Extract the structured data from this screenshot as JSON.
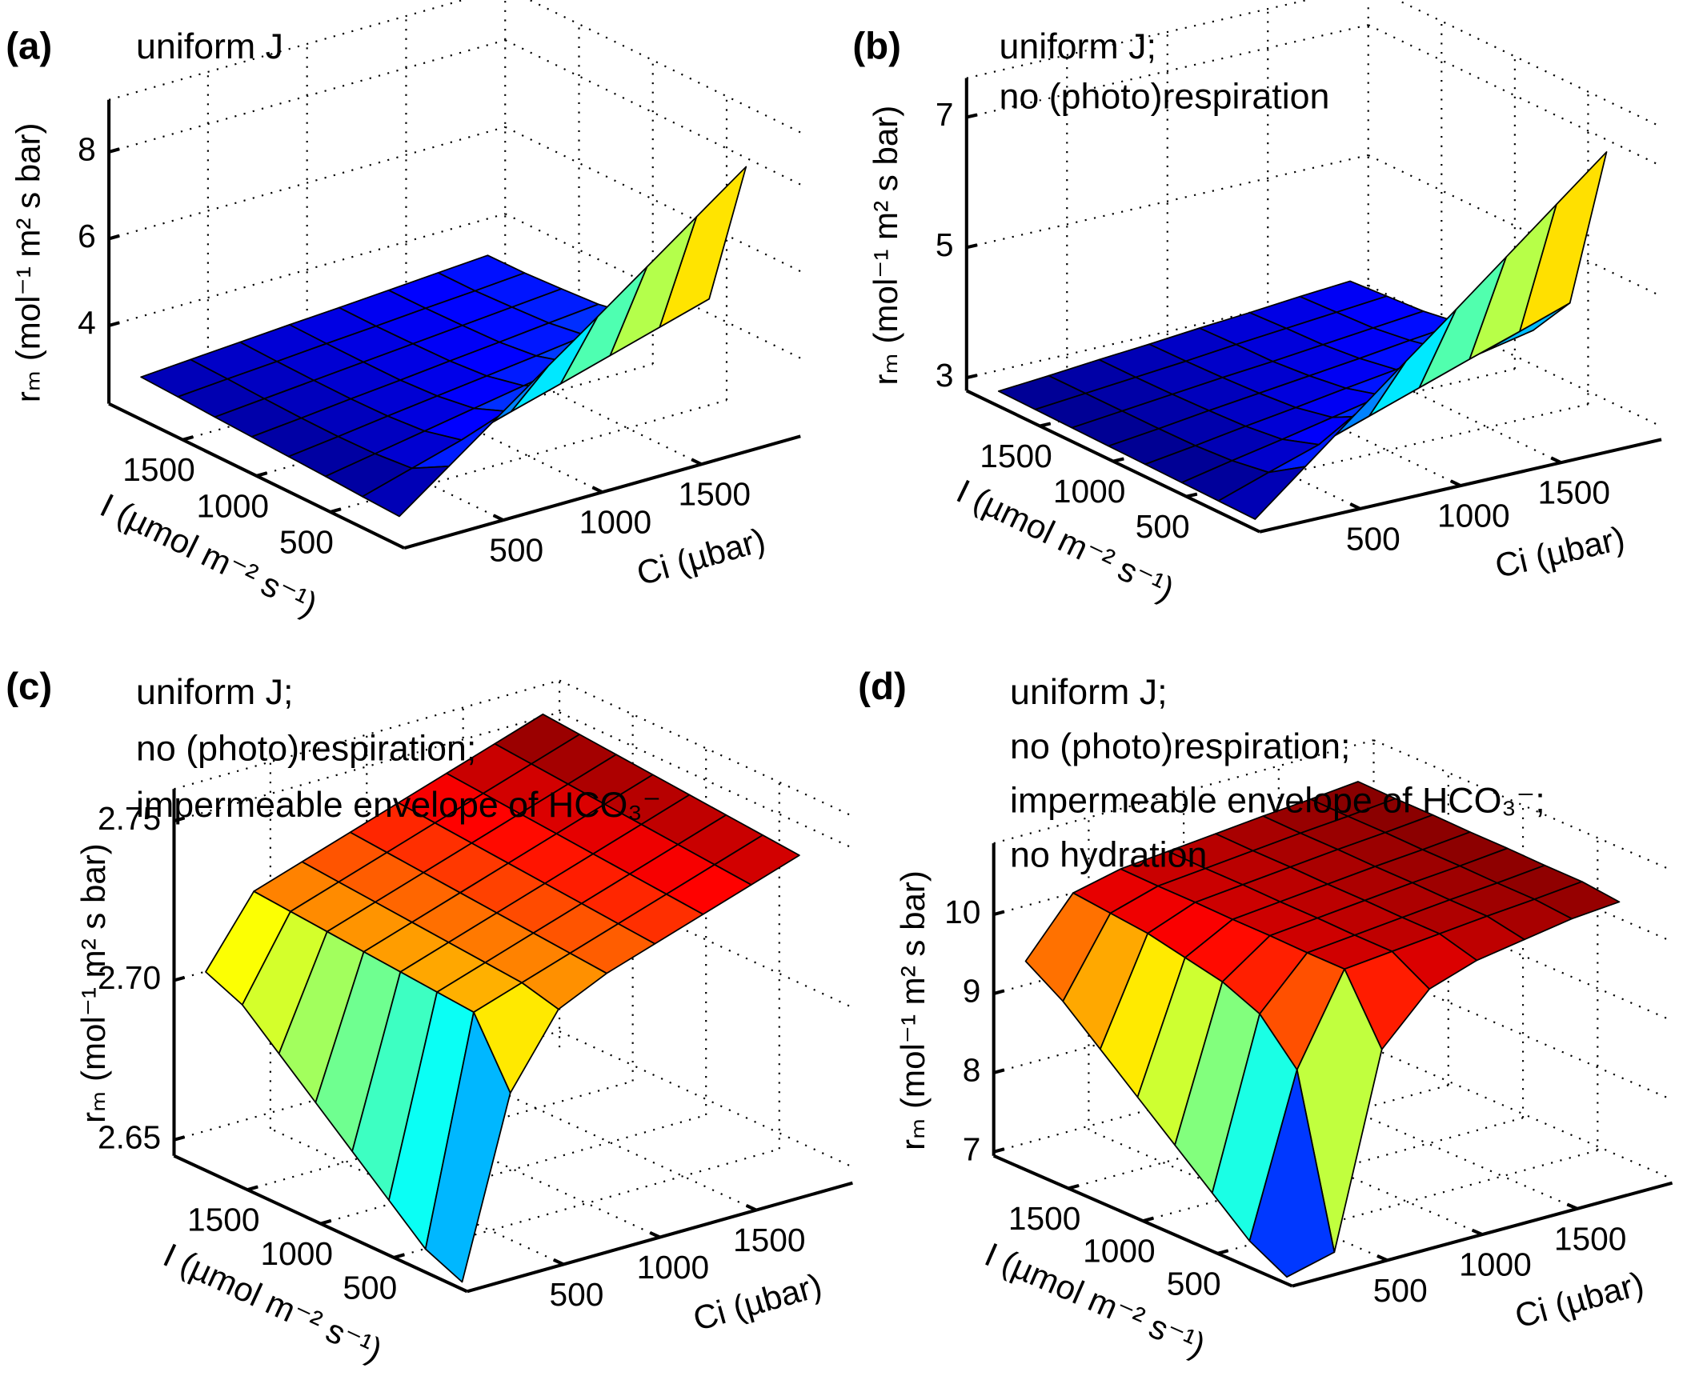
{
  "chart_data": [
    {
      "type": "surface",
      "panel_label": "(a)",
      "annotation": [
        "uniform J"
      ],
      "x_label": "Ci (µbar)",
      "y_label": "I (µmol m⁻² s⁻¹)",
      "z_label": "rₘ (mol⁻¹ m² s bar)",
      "colormap": "jet",
      "grid": true,
      "xlim": [
        0,
        2000
      ],
      "ylim": [
        0,
        2000
      ],
      "zlim": [
        2.2,
        9.2
      ],
      "xticks": [
        500,
        1000,
        1500
      ],
      "yticks": [
        500,
        1000,
        1500
      ],
      "zticks": [
        4,
        6,
        8
      ],
      "x": [
        50,
        300,
        550,
        800,
        1050,
        1300,
        1550,
        1800
      ],
      "y": [
        100,
        350,
        600,
        850,
        1100,
        1350,
        1600,
        1850
      ],
      "z": [
        [
          2.7,
          3.53,
          4.36,
          5.19,
          6.01,
          6.84,
          7.67,
          8.5
        ],
        [
          2.74,
          3.07,
          3.4,
          3.73,
          4.05,
          4.38,
          4.71,
          5.04
        ],
        [
          2.79,
          2.99,
          3.19,
          3.39,
          3.59,
          3.79,
          3.99,
          4.19
        ],
        [
          2.83,
          2.97,
          3.12,
          3.26,
          3.4,
          3.54,
          3.69,
          3.83
        ],
        [
          2.87,
          2.98,
          3.1,
          3.21,
          3.33,
          3.44,
          3.56,
          3.67
        ],
        [
          2.91,
          3.01,
          3.11,
          3.21,
          3.31,
          3.41,
          3.51,
          3.61
        ],
        [
          2.96,
          3.05,
          3.13,
          3.22,
          3.3,
          3.39,
          3.47,
          3.56
        ],
        [
          3.0,
          3.08,
          3.16,
          3.24,
          3.31,
          3.39,
          3.47,
          3.55
        ]
      ]
    },
    {
      "type": "surface",
      "panel_label": "(b)",
      "annotation": [
        "uniform J;",
        "no (photo)respiration"
      ],
      "x_label": "Ci (µbar)",
      "y_label": "I (µmol m⁻² s⁻¹)",
      "z_label": "rₘ (mol⁻¹ m² s bar)",
      "colormap": "jet",
      "grid": true,
      "xlim": [
        0,
        2000
      ],
      "ylim": [
        0,
        2000
      ],
      "zlim": [
        2.8,
        7.6
      ],
      "xticks": [
        500,
        1000,
        1500
      ],
      "yticks": [
        500,
        1000,
        1500
      ],
      "zticks": [
        3,
        5,
        7
      ],
      "x": [
        50,
        300,
        550,
        800,
        1050,
        1300,
        1550,
        1800
      ],
      "y": [
        100,
        350,
        600,
        850,
        1100,
        1350,
        1600,
        1850
      ],
      "z": [
        [
          2.85,
          3.48,
          4.11,
          4.74,
          5.36,
          5.99,
          6.62,
          7.25
        ],
        [
          2.86,
          3.12,
          3.37,
          3.63,
          3.89,
          4.15,
          4.4,
          4.66
        ],
        [
          2.87,
          3.03,
          3.18,
          3.34,
          3.5,
          3.66,
          3.81,
          3.97
        ],
        [
          2.88,
          2.99,
          3.11,
          3.22,
          3.34,
          3.45,
          3.57,
          3.68
        ],
        [
          2.89,
          2.98,
          3.08,
          3.17,
          3.26,
          3.35,
          3.45,
          3.54
        ],
        [
          2.9,
          2.98,
          3.06,
          3.14,
          3.21,
          3.29,
          3.37,
          3.45
        ],
        [
          2.91,
          2.98,
          3.05,
          3.12,
          3.2,
          3.27,
          3.34,
          3.41
        ],
        [
          2.92,
          2.98,
          3.05,
          3.11,
          3.18,
          3.24,
          3.31,
          3.37
        ]
      ]
    },
    {
      "type": "surface",
      "panel_label": "(c)",
      "annotation": [
        "uniform J;",
        "no (photo)respiration;",
        "impermeable envelope of HCO₃⁻"
      ],
      "x_label": "Ci (µbar)",
      "y_label": "I (µmol m⁻² s⁻¹)",
      "z_label": "rₘ (mol⁻¹ m² s bar)",
      "colormap": "jet",
      "grid": true,
      "xlim": [
        0,
        2000
      ],
      "ylim": [
        0,
        2000
      ],
      "zlim": [
        2.645,
        2.76
      ],
      "xticks": [
        500,
        1000,
        1500
      ],
      "yticks": [
        500,
        1000,
        1500
      ],
      "zticks": [
        2.65,
        {
          "value": 2.7,
          "label": "2.70"
        },
        2.75
      ],
      "x": [
        50,
        300,
        550,
        800,
        1050,
        1300,
        1550,
        1800
      ],
      "y": [
        100,
        350,
        600,
        850,
        1100,
        1350,
        1600,
        1850
      ],
      "z": [
        [
          2.645,
          2.7,
          2.722,
          2.729,
          2.734,
          2.739,
          2.744,
          2.749
        ],
        [
          2.65,
          2.72,
          2.725,
          2.73,
          2.735,
          2.74,
          2.745,
          2.75
        ],
        [
          2.66,
          2.721,
          2.726,
          2.731,
          2.736,
          2.741,
          2.746,
          2.751
        ],
        [
          2.67,
          2.722,
          2.727,
          2.732,
          2.737,
          2.742,
          2.747,
          2.752
        ],
        [
          2.68,
          2.723,
          2.728,
          2.733,
          2.738,
          2.743,
          2.748,
          2.753
        ],
        [
          2.69,
          2.724,
          2.729,
          2.734,
          2.739,
          2.744,
          2.749,
          2.754
        ],
        [
          2.7,
          2.725,
          2.73,
          2.735,
          2.74,
          2.745,
          2.75,
          2.755
        ],
        [
          2.705,
          2.726,
          2.731,
          2.736,
          2.741,
          2.746,
          2.751,
          2.756
        ]
      ]
    },
    {
      "type": "surface",
      "panel_label": "(d)",
      "annotation": [
        "uniform J;",
        "no (photo)respiration;",
        "impermeable envelope of HCO₃⁻;",
        "no hydration"
      ],
      "x_label": "Ci (µbar)",
      "y_label": "I (µmol m⁻² s⁻¹)",
      "z_label": "rₘ (mol⁻¹ m² s bar)",
      "colormap": "jet",
      "grid": true,
      "xlim": [
        0,
        2000
      ],
      "ylim": [
        0,
        2000
      ],
      "zlim": [
        6.95,
        10.9
      ],
      "xticks": [
        500,
        1000,
        1500
      ],
      "yticks": [
        500,
        1000,
        1500
      ],
      "zticks": [
        7,
        8,
        9,
        10
      ],
      "x": [
        50,
        300,
        550,
        800,
        1050,
        1300,
        1550,
        1800
      ],
      "y": [
        100,
        350,
        600,
        850,
        1100,
        1350,
        1600,
        1850
      ],
      "z": [
        [
          6.95,
          7.1,
          9.5,
          10.1,
          10.3,
          10.4,
          10.5,
          10.55
        ],
        [
          7.2,
          9.2,
          10.31,
          10.37,
          10.43,
          10.49,
          10.54,
          10.6
        ],
        [
          7.6,
          9.7,
          10.31,
          10.37,
          10.43,
          10.49,
          10.54,
          10.6
        ],
        [
          8.0,
          9.9,
          10.32,
          10.38,
          10.44,
          10.5,
          10.55,
          10.61
        ],
        [
          8.4,
          10.0,
          10.32,
          10.38,
          10.44,
          10.5,
          10.55,
          10.61
        ],
        [
          8.8,
          10.1,
          10.33,
          10.39,
          10.45,
          10.51,
          10.56,
          10.62
        ],
        [
          9.2,
          10.15,
          10.33,
          10.39,
          10.45,
          10.51,
          10.56,
          10.62
        ],
        [
          9.5,
          10.2,
          10.34,
          10.4,
          10.46,
          10.52,
          10.57,
          10.63
        ]
      ]
    }
  ]
}
